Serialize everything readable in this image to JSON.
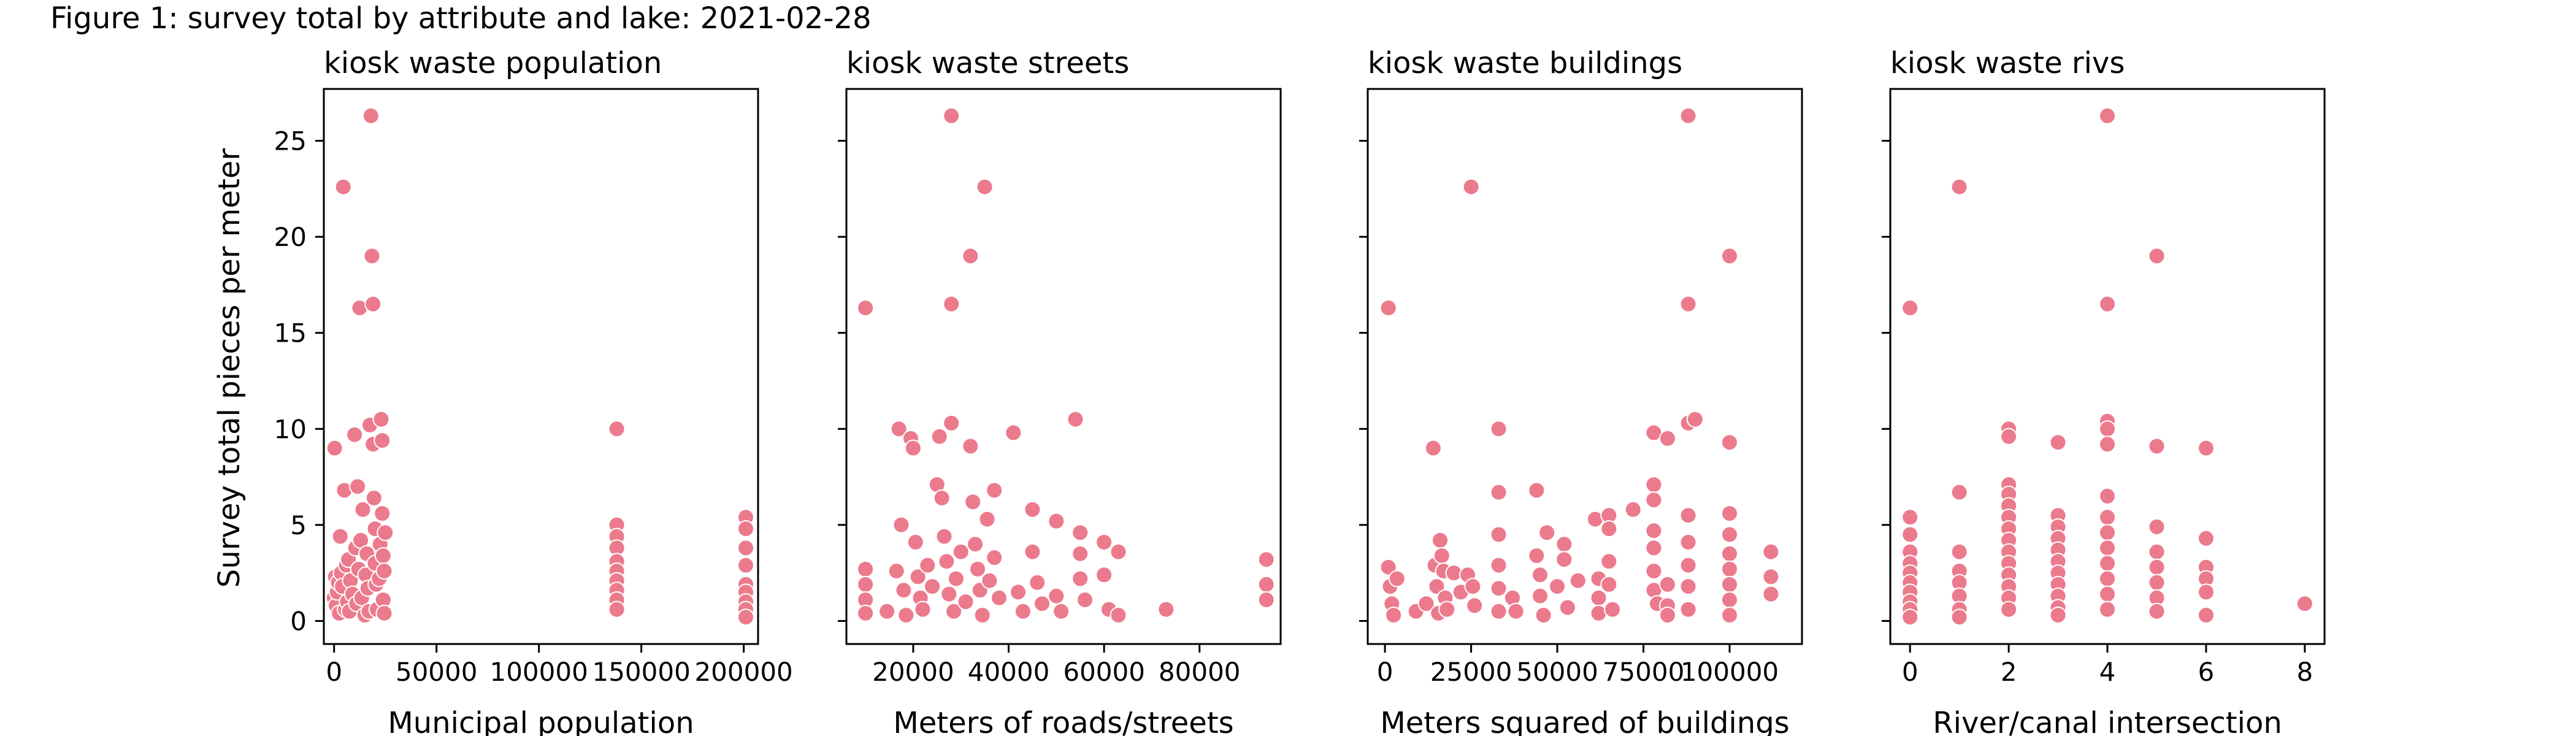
{
  "figure": {
    "title": "Figure 1: survey total by attribute and lake: 2021-02-28",
    "ylabel": "Survey total pieces per meter",
    "marker_color": "#ec7a8d"
  },
  "chart_data": [
    {
      "type": "scatter",
      "title": "kiosk waste population",
      "xlabel": "Municipal population",
      "ylabel": "Survey total pieces per meter",
      "xlim": [
        -5000,
        207000
      ],
      "ylim": [
        -1.2,
        27.7
      ],
      "xticks": [
        0,
        50000,
        100000,
        150000,
        200000
      ],
      "xtick_labels": [
        "0",
        "50000",
        "100000",
        "150000",
        "200000"
      ],
      "yticks": [
        0,
        5,
        10,
        15,
        20,
        25
      ],
      "grid": false,
      "points": [
        [
          300,
          9.0
        ],
        [
          0,
          1.2
        ],
        [
          600,
          2.3
        ],
        [
          1000,
          0.8
        ],
        [
          1500,
          1.5
        ],
        [
          2000,
          2.0
        ],
        [
          2500,
          0.4
        ],
        [
          3000,
          4.4
        ],
        [
          3500,
          2.5
        ],
        [
          4000,
          1.8
        ],
        [
          4500,
          22.6
        ],
        [
          5000,
          6.8
        ],
        [
          5500,
          0.6
        ],
        [
          6000,
          2.9
        ],
        [
          6500,
          1.0
        ],
        [
          7000,
          3.2
        ],
        [
          7500,
          0.5
        ],
        [
          8000,
          2.1
        ],
        [
          9000,
          1.4
        ],
        [
          10000,
          9.7
        ],
        [
          10500,
          3.8
        ],
        [
          11000,
          0.9
        ],
        [
          11500,
          7.0
        ],
        [
          12000,
          2.7
        ],
        [
          12500,
          16.3
        ],
        [
          13000,
          4.2
        ],
        [
          13500,
          1.2
        ],
        [
          14000,
          5.8
        ],
        [
          15000,
          0.3
        ],
        [
          15500,
          2.4
        ],
        [
          16000,
          3.5
        ],
        [
          16500,
          1.7
        ],
        [
          17000,
          0.5
        ],
        [
          17500,
          10.2
        ],
        [
          18000,
          26.3
        ],
        [
          18500,
          19.0
        ],
        [
          19000,
          16.5
        ],
        [
          19000,
          9.2
        ],
        [
          19500,
          6.4
        ],
        [
          20000,
          4.8
        ],
        [
          20000,
          3.0
        ],
        [
          20500,
          1.9
        ],
        [
          21000,
          0.6
        ],
        [
          22000,
          2.2
        ],
        [
          22500,
          4.0
        ],
        [
          23000,
          10.5
        ],
        [
          23500,
          9.4
        ],
        [
          23500,
          5.6
        ],
        [
          24000,
          3.4
        ],
        [
          24000,
          1.1
        ],
        [
          24500,
          0.4
        ],
        [
          24500,
          2.6
        ],
        [
          25000,
          4.6
        ],
        [
          138000,
          10.0
        ],
        [
          138000,
          5.0
        ],
        [
          138000,
          4.4
        ],
        [
          138000,
          3.8
        ],
        [
          138000,
          3.1
        ],
        [
          138000,
          2.6
        ],
        [
          138000,
          2.1
        ],
        [
          138000,
          1.6
        ],
        [
          138000,
          1.1
        ],
        [
          138000,
          0.6
        ],
        [
          201000,
          5.4
        ],
        [
          201000,
          4.8
        ],
        [
          201000,
          3.8
        ],
        [
          201000,
          2.9
        ],
        [
          201000,
          1.9
        ],
        [
          201000,
          1.5
        ],
        [
          201000,
          1.0
        ],
        [
          201000,
          0.6
        ],
        [
          201000,
          0.2
        ]
      ]
    },
    {
      "type": "scatter",
      "title": "kiosk waste streets",
      "xlabel": "Meters of roads/streets",
      "ylabel": "Survey total pieces per meter",
      "xlim": [
        6000,
        97000
      ],
      "ylim": [
        -1.2,
        27.7
      ],
      "xticks": [
        20000,
        40000,
        60000,
        80000
      ],
      "xtick_labels": [
        "20000",
        "40000",
        "60000",
        "80000"
      ],
      "yticks": [
        0,
        5,
        10,
        15,
        20,
        25
      ],
      "grid": false,
      "points": [
        [
          10000,
          16.3
        ],
        [
          10000,
          2.7
        ],
        [
          10000,
          1.9
        ],
        [
          10000,
          1.1
        ],
        [
          10000,
          0.4
        ],
        [
          14500,
          0.5
        ],
        [
          16500,
          2.6
        ],
        [
          17000,
          10.0
        ],
        [
          17500,
          5.0
        ],
        [
          18000,
          1.6
        ],
        [
          18500,
          0.3
        ],
        [
          19500,
          9.5
        ],
        [
          20000,
          9.0
        ],
        [
          20500,
          4.1
        ],
        [
          21000,
          2.3
        ],
        [
          21500,
          1.2
        ],
        [
          22000,
          0.6
        ],
        [
          23000,
          2.9
        ],
        [
          24000,
          1.8
        ],
        [
          25000,
          7.1
        ],
        [
          25500,
          9.6
        ],
        [
          26000,
          6.4
        ],
        [
          26500,
          4.4
        ],
        [
          27000,
          3.1
        ],
        [
          27500,
          1.4
        ],
        [
          28000,
          26.3
        ],
        [
          28000,
          16.5
        ],
        [
          28000,
          10.3
        ],
        [
          28500,
          0.5
        ],
        [
          29000,
          2.2
        ],
        [
          30000,
          3.6
        ],
        [
          31000,
          1.0
        ],
        [
          32000,
          19.0
        ],
        [
          32000,
          9.1
        ],
        [
          32500,
          6.2
        ],
        [
          33000,
          4.0
        ],
        [
          33500,
          2.7
        ],
        [
          34000,
          1.6
        ],
        [
          34500,
          0.3
        ],
        [
          35000,
          22.6
        ],
        [
          35500,
          5.3
        ],
        [
          36000,
          2.1
        ],
        [
          37000,
          3.3
        ],
        [
          37000,
          6.8
        ],
        [
          38000,
          1.2
        ],
        [
          41000,
          9.8
        ],
        [
          42000,
          1.5
        ],
        [
          43000,
          0.5
        ],
        [
          45000,
          5.8
        ],
        [
          45000,
          3.6
        ],
        [
          46000,
          2.0
        ],
        [
          47000,
          0.9
        ],
        [
          50000,
          5.2
        ],
        [
          50000,
          1.3
        ],
        [
          51000,
          0.5
        ],
        [
          54000,
          10.5
        ],
        [
          55000,
          4.6
        ],
        [
          55000,
          3.5
        ],
        [
          55000,
          2.2
        ],
        [
          56000,
          1.1
        ],
        [
          60000,
          4.1
        ],
        [
          60000,
          2.4
        ],
        [
          61000,
          0.6
        ],
        [
          63000,
          3.6
        ],
        [
          63000,
          0.3
        ],
        [
          73000,
          0.6
        ],
        [
          94000,
          3.2
        ],
        [
          94000,
          1.9
        ],
        [
          94000,
          1.1
        ]
      ]
    },
    {
      "type": "scatter",
      "title": "kiosk waste buildings",
      "xlabel": "Meters squared of buildings",
      "ylabel": "Survey total pieces per meter",
      "xlim": [
        -5000,
        121000
      ],
      "ylim": [
        -1.2,
        27.7
      ],
      "xticks": [
        0,
        25000,
        50000,
        75000,
        100000
      ],
      "xtick_labels": [
        "0",
        "25000",
        "50000",
        "75000",
        "100000"
      ],
      "yticks": [
        0,
        5,
        10,
        15,
        20,
        25
      ],
      "grid": false,
      "points": [
        [
          1000,
          16.3
        ],
        [
          1000,
          2.8
        ],
        [
          1500,
          1.8
        ],
        [
          2000,
          0.9
        ],
        [
          2500,
          0.3
        ],
        [
          3500,
          2.2
        ],
        [
          9000,
          0.5
        ],
        [
          12000,
          0.9
        ],
        [
          14000,
          9.0
        ],
        [
          14500,
          2.9
        ],
        [
          15000,
          1.8
        ],
        [
          15500,
          0.4
        ],
        [
          16000,
          4.2
        ],
        [
          16500,
          3.4
        ],
        [
          17000,
          2.6
        ],
        [
          17500,
          1.2
        ],
        [
          18000,
          0.6
        ],
        [
          20000,
          2.5
        ],
        [
          22000,
          1.5
        ],
        [
          24000,
          2.4
        ],
        [
          25000,
          22.6
        ],
        [
          25500,
          1.8
        ],
        [
          26000,
          0.8
        ],
        [
          33000,
          10.0
        ],
        [
          33000,
          6.7
        ],
        [
          33000,
          4.5
        ],
        [
          33000,
          2.9
        ],
        [
          33000,
          1.7
        ],
        [
          33000,
          0.5
        ],
        [
          37000,
          1.2
        ],
        [
          38000,
          0.5
        ],
        [
          44000,
          6.8
        ],
        [
          44000,
          3.4
        ],
        [
          45000,
          2.4
        ],
        [
          45000,
          1.3
        ],
        [
          46000,
          0.3
        ],
        [
          47000,
          4.6
        ],
        [
          50000,
          1.8
        ],
        [
          52000,
          4.0
        ],
        [
          52000,
          3.2
        ],
        [
          53000,
          0.7
        ],
        [
          56000,
          2.1
        ],
        [
          61000,
          5.3
        ],
        [
          62000,
          2.2
        ],
        [
          62000,
          1.2
        ],
        [
          62000,
          0.4
        ],
        [
          65000,
          5.5
        ],
        [
          65000,
          4.8
        ],
        [
          65000,
          3.1
        ],
        [
          65000,
          1.9
        ],
        [
          66000,
          0.6
        ],
        [
          72000,
          5.8
        ],
        [
          78000,
          9.8
        ],
        [
          78000,
          7.1
        ],
        [
          78000,
          6.3
        ],
        [
          78000,
          4.7
        ],
        [
          78000,
          3.8
        ],
        [
          78000,
          2.6
        ],
        [
          78000,
          1.6
        ],
        [
          79000,
          0.9
        ],
        [
          82000,
          9.5
        ],
        [
          82000,
          1.9
        ],
        [
          82000,
          0.8
        ],
        [
          82000,
          0.3
        ],
        [
          88000,
          26.3
        ],
        [
          88000,
          16.5
        ],
        [
          88000,
          10.3
        ],
        [
          88000,
          5.5
        ],
        [
          88000,
          4.1
        ],
        [
          88000,
          2.9
        ],
        [
          88000,
          1.8
        ],
        [
          88000,
          0.6
        ],
        [
          90000,
          10.5
        ],
        [
          100000,
          19.0
        ],
        [
          100000,
          9.3
        ],
        [
          100000,
          5.6
        ],
        [
          100000,
          4.5
        ],
        [
          100000,
          3.5
        ],
        [
          100000,
          2.7
        ],
        [
          100000,
          1.9
        ],
        [
          100000,
          1.1
        ],
        [
          100000,
          0.3
        ],
        [
          112000,
          3.6
        ],
        [
          112000,
          2.3
        ],
        [
          112000,
          1.4
        ]
      ]
    },
    {
      "type": "scatter",
      "title": "kiosk waste rivs",
      "xlabel": "River/canal intersection",
      "ylabel": "Survey total pieces per meter",
      "xlim": [
        -0.4,
        8.4
      ],
      "ylim": [
        -1.2,
        27.7
      ],
      "xticks": [
        0,
        2,
        4,
        6,
        8
      ],
      "xtick_labels": [
        "0",
        "2",
        "4",
        "6",
        "8"
      ],
      "yticks": [
        0,
        5,
        10,
        15,
        20,
        25
      ],
      "grid": false,
      "points": [
        [
          0,
          16.3
        ],
        [
          0,
          5.4
        ],
        [
          0,
          4.5
        ],
        [
          0,
          3.6
        ],
        [
          0,
          3.0
        ],
        [
          0,
          2.5
        ],
        [
          0,
          2.0
        ],
        [
          0,
          1.5
        ],
        [
          0,
          1.0
        ],
        [
          0,
          0.6
        ],
        [
          0,
          0.2
        ],
        [
          1,
          22.6
        ],
        [
          1,
          6.7
        ],
        [
          1,
          3.6
        ],
        [
          1,
          2.6
        ],
        [
          1,
          2.0
        ],
        [
          1,
          1.3
        ],
        [
          1,
          0.6
        ],
        [
          1,
          0.2
        ],
        [
          2,
          10.0
        ],
        [
          2,
          9.6
        ],
        [
          2,
          7.1
        ],
        [
          2,
          6.6
        ],
        [
          2,
          6.0
        ],
        [
          2,
          5.4
        ],
        [
          2,
          4.8
        ],
        [
          2,
          4.2
        ],
        [
          2,
          3.6
        ],
        [
          2,
          3.0
        ],
        [
          2,
          2.4
        ],
        [
          2,
          1.8
        ],
        [
          2,
          1.2
        ],
        [
          2,
          0.6
        ],
        [
          3,
          9.3
        ],
        [
          3,
          5.5
        ],
        [
          3,
          4.9
        ],
        [
          3,
          4.3
        ],
        [
          3,
          3.7
        ],
        [
          3,
          3.1
        ],
        [
          3,
          2.5
        ],
        [
          3,
          1.9
        ],
        [
          3,
          1.3
        ],
        [
          3,
          0.7
        ],
        [
          3,
          0.3
        ],
        [
          4,
          26.3
        ],
        [
          4,
          16.5
        ],
        [
          4,
          10.4
        ],
        [
          4,
          10.0
        ],
        [
          4,
          9.2
        ],
        [
          4,
          6.5
        ],
        [
          4,
          5.4
        ],
        [
          4,
          4.6
        ],
        [
          4,
          3.8
        ],
        [
          4,
          3.0
        ],
        [
          4,
          2.2
        ],
        [
          4,
          1.4
        ],
        [
          4,
          0.6
        ],
        [
          5,
          19.0
        ],
        [
          5,
          9.1
        ],
        [
          5,
          4.9
        ],
        [
          5,
          3.6
        ],
        [
          5,
          2.8
        ],
        [
          5,
          2.0
        ],
        [
          5,
          1.2
        ],
        [
          5,
          0.5
        ],
        [
          6,
          9.0
        ],
        [
          6,
          4.3
        ],
        [
          6,
          2.8
        ],
        [
          6,
          2.2
        ],
        [
          6,
          1.5
        ],
        [
          6,
          0.3
        ],
        [
          8,
          0.9
        ]
      ]
    }
  ]
}
